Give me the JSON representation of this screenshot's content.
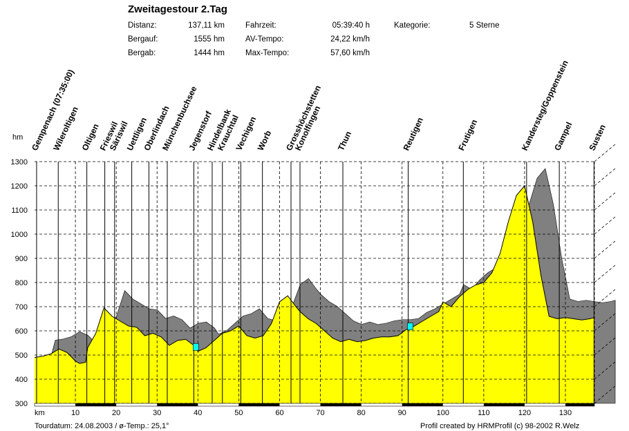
{
  "header": {
    "title": "Zweitagestour 2.Tag",
    "distanz_label": "Distanz:",
    "distanz_value": "137,11 km",
    "bergauf_label": "Bergauf:",
    "bergauf_value": "1555 hm",
    "bergab_label": "Bergab:",
    "bergab_value": "1444 hm",
    "fahrzeit_label": "Fahrzeit:",
    "fahrzeit_value": "05:39:40 h",
    "avtempo_label": "AV-Tempo:",
    "avtempo_value": "24,22 km/h",
    "maxtempo_label": "Max-Tempo:",
    "maxtempo_value": "57,60 km/h",
    "kategorie_label": "Kategorie:",
    "kategorie_value": "5 Sterne"
  },
  "footer": {
    "tourdatum": "Tourdatum: 24.08.2003  /  ø-Temp.: 25,1°",
    "credit": "Profil created by HRMProfil (c) 98-2002 R.Welz"
  },
  "colors": {
    "profile": "#ffff00",
    "shadow": "#808080",
    "marker": "#00ffff",
    "axis": "#000000"
  },
  "chart_data": {
    "type": "area",
    "xlabel": "km",
    "ylabel": "hm",
    "xlim": [
      0,
      137.11
    ],
    "ylim": [
      300,
      1300
    ],
    "xticks": [
      10,
      20,
      30,
      40,
      50,
      60,
      70,
      80,
      90,
      100,
      110,
      120,
      130
    ],
    "yticks": [
      300,
      400,
      500,
      600,
      700,
      800,
      900,
      1000,
      1100,
      1200,
      1300
    ],
    "grid": true,
    "markers": [
      39.5,
      92
    ],
    "profile": {
      "x": [
        0,
        2,
        4,
        6,
        8,
        10,
        11,
        12.5,
        13,
        15,
        17,
        19,
        21,
        23,
        25,
        27,
        29,
        31,
        33,
        35,
        37,
        39,
        40,
        42,
        44,
        46,
        48,
        50,
        52,
        54,
        56,
        58,
        60,
        62,
        64,
        65,
        67,
        69,
        71,
        73,
        75,
        77,
        79,
        81,
        83,
        85,
        87,
        89,
        91,
        93,
        95,
        97,
        99,
        100,
        102,
        104,
        106,
        108,
        110,
        112,
        114,
        116,
        118,
        119,
        120,
        122,
        124,
        126,
        128,
        130,
        132,
        134,
        136,
        137.11
      ],
      "y": [
        490,
        495,
        505,
        525,
        510,
        475,
        465,
        470,
        530,
        590,
        695,
        660,
        640,
        620,
        615,
        580,
        590,
        575,
        540,
        560,
        565,
        540,
        515,
        530,
        560,
        590,
        600,
        620,
        580,
        570,
        580,
        630,
        720,
        745,
        700,
        680,
        650,
        630,
        600,
        570,
        555,
        565,
        555,
        560,
        570,
        575,
        575,
        580,
        605,
        620,
        640,
        660,
        680,
        720,
        700,
        740,
        770,
        790,
        800,
        840,
        920,
        1050,
        1160,
        1180,
        1200,
        1050,
        830,
        660,
        650,
        655,
        650,
        645,
        650,
        655
      ]
    },
    "waypoints": [
      {
        "km": 0.5,
        "name": "Gempenach (07:35:00)"
      },
      {
        "km": 5.8,
        "name": "Wileroltigen"
      },
      {
        "km": 12.8,
        "name": "Oltigen"
      },
      {
        "km": 17.2,
        "name": "Frieswil"
      },
      {
        "km": 19.6,
        "name": "Säriswil"
      },
      {
        "km": 23.8,
        "name": "Uettligen"
      },
      {
        "km": 28,
        "name": "Oberlindach"
      },
      {
        "km": 32.5,
        "name": "Münchenbuchsee"
      },
      {
        "km": 39,
        "name": "Jegenstorf"
      },
      {
        "km": 43.5,
        "name": "Hindelbank"
      },
      {
        "km": 46,
        "name": "Krauchtal"
      },
      {
        "km": 50.5,
        "name": "Vechigen"
      },
      {
        "km": 55.8,
        "name": "Worb"
      },
      {
        "km": 62.8,
        "name": "Grosshöchstetten"
      },
      {
        "km": 65,
        "name": "Konolfingen"
      },
      {
        "km": 75.5,
        "name": "Thun"
      },
      {
        "km": 91.5,
        "name": "Reutigen"
      },
      {
        "km": 105,
        "name": "Frutigen"
      },
      {
        "km": 120.5,
        "name": "Kandersteg/Goppenstein"
      },
      {
        "km": 128.5,
        "name": "Gampel"
      },
      {
        "km": 137,
        "name": "Susten"
      }
    ]
  }
}
